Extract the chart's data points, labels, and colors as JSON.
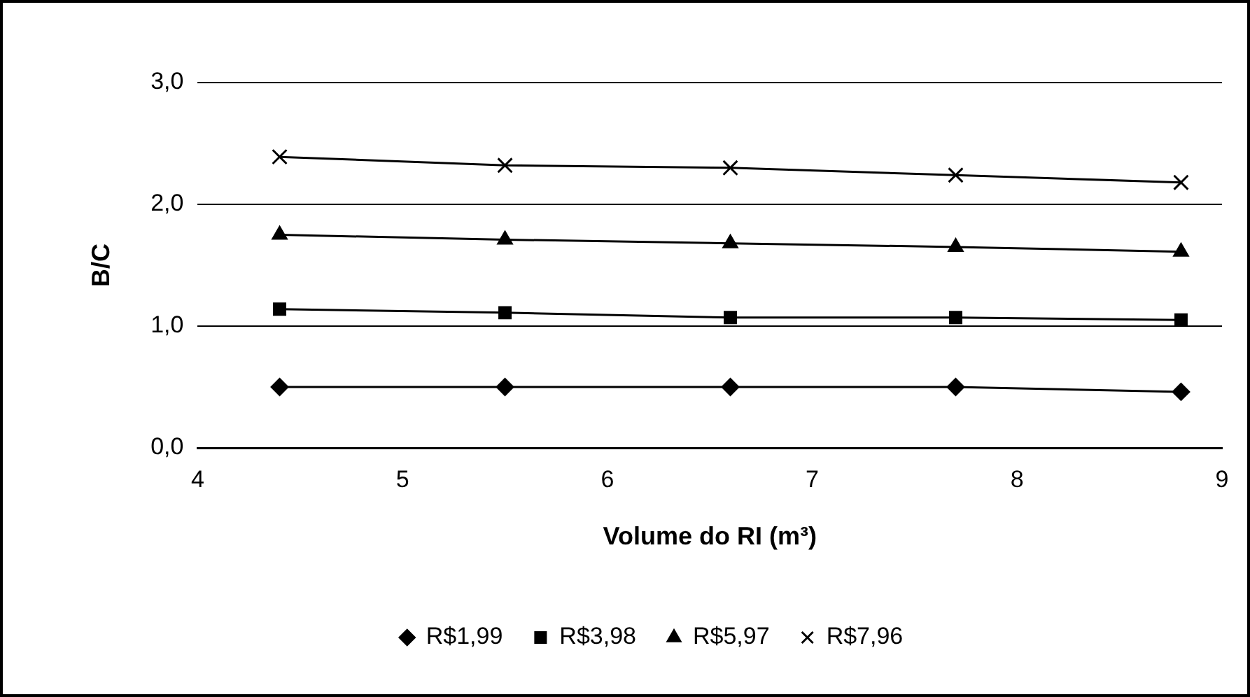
{
  "chart_data": {
    "type": "line",
    "xlabel": "Volume do RI (m³)",
    "ylabel": "B/C",
    "x": [
      4.4,
      5.5,
      6.6,
      7.7,
      8.8
    ],
    "xlim": [
      4,
      9
    ],
    "xticks": [
      4,
      5,
      6,
      7,
      8,
      9
    ],
    "ylim": [
      0,
      3
    ],
    "yticks": [
      {
        "value": 0,
        "label": "0,0"
      },
      {
        "value": 1,
        "label": "1,0"
      },
      {
        "value": 2,
        "label": "2,0"
      },
      {
        "value": 3,
        "label": "3,0"
      }
    ],
    "grid": "y",
    "legend": "bottom",
    "line_style": "solid",
    "series": [
      {
        "name": "R$1,99",
        "color": "#000000",
        "marker": "diamond",
        "values": [
          0.5,
          0.5,
          0.5,
          0.5,
          0.46
        ]
      },
      {
        "name": "R$3,98",
        "color": "#000000",
        "marker": "square",
        "values": [
          1.14,
          1.11,
          1.07,
          1.07,
          1.05
        ]
      },
      {
        "name": "R$5,97",
        "color": "#000000",
        "marker": "triangle",
        "values": [
          1.75,
          1.71,
          1.68,
          1.65,
          1.61
        ]
      },
      {
        "name": "R$7,96",
        "color": "#000000",
        "marker": "cross",
        "values": [
          2.39,
          2.32,
          2.3,
          2.24,
          2.18
        ]
      }
    ]
  }
}
